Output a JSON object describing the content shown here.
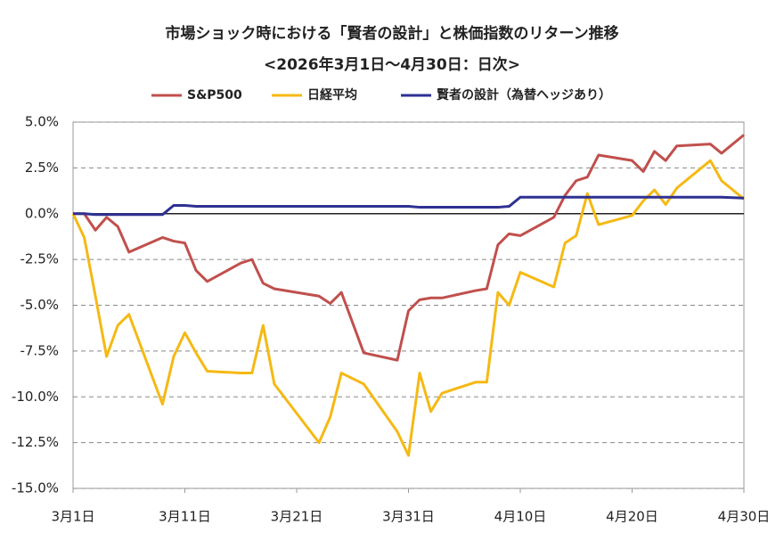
{
  "chart_data": {
    "type": "line",
    "title": "市場ショック時における「賢者の設計」と株価指数のリターン推移",
    "subtitle": "<2026年3月1日〜4月30日：日次>",
    "x": [
      0,
      1,
      2,
      3,
      4,
      5,
      8,
      9,
      10,
      11,
      12,
      15,
      16,
      17,
      18,
      22,
      23,
      24,
      26,
      29,
      30,
      31,
      32,
      33,
      36,
      37,
      38,
      39,
      40,
      43,
      44,
      45,
      46,
      47,
      50,
      51,
      52,
      53,
      54,
      57,
      58,
      60
    ],
    "xlim": [
      0,
      60
    ],
    "xticks": [
      {
        "value": 0,
        "label": "3月1日"
      },
      {
        "value": 10,
        "label": "3月11日"
      },
      {
        "value": 20,
        "label": "3月21日"
      },
      {
        "value": 30,
        "label": "3月31日"
      },
      {
        "value": 40,
        "label": "4月10日"
      },
      {
        "value": 50,
        "label": "4月20日"
      },
      {
        "value": 60,
        "label": "4月30日"
      }
    ],
    "ylim": [
      -15,
      5
    ],
    "yticks": [
      {
        "value": 5,
        "label": "5.0%"
      },
      {
        "value": 2.5,
        "label": "2.5%"
      },
      {
        "value": 0,
        "label": "0.0%"
      },
      {
        "value": -2.5,
        "label": "-2.5%"
      },
      {
        "value": -5,
        "label": "-5.0%"
      },
      {
        "value": -7.5,
        "label": "-7.5%"
      },
      {
        "value": -10,
        "label": "-10.0%"
      },
      {
        "value": -12.5,
        "label": "-12.5%"
      },
      {
        "value": -15,
        "label": "-15.0%"
      }
    ],
    "grid": true,
    "legend": "top",
    "series": [
      {
        "name": "S&P500",
        "color": "#c0504d",
        "values": [
          0,
          0,
          -0.9,
          -0.2,
          -0.7,
          -2.1,
          -1.3,
          -1.5,
          -1.6,
          -3.1,
          -3.7,
          -2.7,
          -2.5,
          -3.8,
          -4.1,
          -4.5,
          -4.9,
          -4.3,
          -7.6,
          -8.0,
          -5.3,
          -4.7,
          -4.6,
          -4.6,
          -4.2,
          -4.1,
          -1.7,
          -1.1,
          -1.2,
          -0.2,
          1.0,
          1.8,
          2.0,
          3.2,
          2.9,
          2.3,
          3.4,
          2.9,
          3.7,
          3.8,
          3.3,
          4.3
        ]
      },
      {
        "name": "日経平均",
        "color": "#f5b914",
        "values": [
          0,
          -1.3,
          -4.5,
          -7.8,
          -6.1,
          -5.5,
          -10.4,
          -7.8,
          -6.5,
          -7.6,
          -8.6,
          -8.7,
          -8.7,
          -6.1,
          -9.3,
          -12.5,
          -11.1,
          -8.7,
          -9.3,
          -11.9,
          -13.2,
          -8.7,
          -10.8,
          -9.8,
          -9.2,
          -9.2,
          -4.3,
          -5.0,
          -3.2,
          -4.0,
          -1.6,
          -1.2,
          1.1,
          -0.6,
          -0.1,
          0.7,
          1.3,
          0.5,
          1.4,
          2.9,
          1.8,
          0.8
        ]
      },
      {
        "name": "賢者の設計（為替ヘッジあり）",
        "color": "#2e3192",
        "values": [
          0,
          0,
          -0.05,
          -0.05,
          -0.05,
          -0.05,
          -0.05,
          0.45,
          0.45,
          0.4,
          0.4,
          0.4,
          0.4,
          0.4,
          0.4,
          0.4,
          0.4,
          0.4,
          0.4,
          0.4,
          0.4,
          0.35,
          0.35,
          0.35,
          0.35,
          0.35,
          0.35,
          0.4,
          0.9,
          0.9,
          0.9,
          0.9,
          0.9,
          0.9,
          0.9,
          0.9,
          0.9,
          0.9,
          0.9,
          0.9,
          0.9,
          0.85
        ]
      }
    ]
  }
}
